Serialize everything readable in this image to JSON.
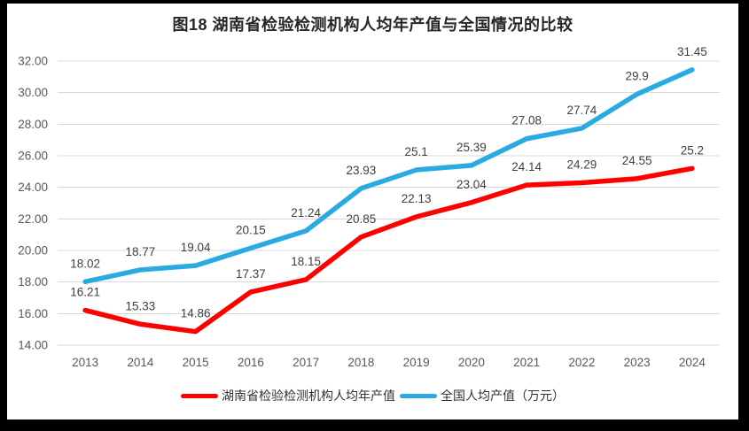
{
  "title": "图18 湖南省检验检测机构人均年产值与全国情况的比较",
  "chart_data": {
    "type": "line",
    "categories": [
      "2013",
      "2014",
      "2015",
      "2016",
      "2017",
      "2018",
      "2019",
      "2020",
      "2021",
      "2022",
      "2023",
      "2024"
    ],
    "series": [
      {
        "name": "湖南省检验检测机构人均年产值",
        "color": "#FF0000",
        "values": [
          16.21,
          15.33,
          14.86,
          17.37,
          18.15,
          20.85,
          22.13,
          23.04,
          24.14,
          24.29,
          24.55,
          25.2
        ]
      },
      {
        "name": "全国人均产值（万元）",
        "color": "#29ABE2",
        "values": [
          18.02,
          18.77,
          19.04,
          20.15,
          21.24,
          23.93,
          25.1,
          25.39,
          27.08,
          27.74,
          29.9,
          31.45
        ]
      }
    ],
    "ylim": [
      14,
      32
    ],
    "ytick_step": 2,
    "ytick_labels": [
      "14.00",
      "16.00",
      "18.00",
      "20.00",
      "22.00",
      "24.00",
      "26.00",
      "28.00",
      "30.00",
      "32.00"
    ],
    "grid": "horizontal",
    "grid_color": "#D9D9D9",
    "axis_text_color": "#595959",
    "data_label_color": "#3F3F3F",
    "legend_position": "bottom",
    "data_labels": true
  }
}
